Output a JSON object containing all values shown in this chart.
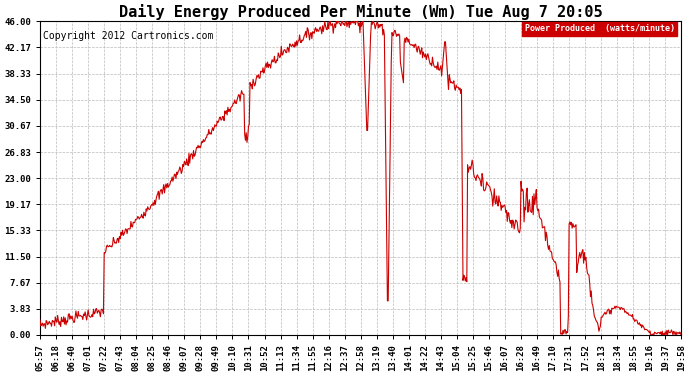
{
  "title": "Daily Energy Produced Per Minute (Wm) Tue Aug 7 20:05",
  "copyright": "Copyright 2012 Cartronics.com",
  "legend_label": "Power Produced  (watts/minute)",
  "legend_bg": "#cc0000",
  "legend_text_color": "#ffffff",
  "line_color": "#cc0000",
  "background_color": "#ffffff",
  "grid_color": "#bbbbbb",
  "ylim": [
    0,
    46.0
  ],
  "yticks": [
    0.0,
    3.83,
    7.67,
    11.5,
    15.33,
    19.17,
    23.0,
    26.83,
    30.67,
    34.5,
    38.33,
    42.17,
    46.0
  ],
  "title_fontsize": 11,
  "copyright_fontsize": 7,
  "axis_fontsize": 6.5
}
